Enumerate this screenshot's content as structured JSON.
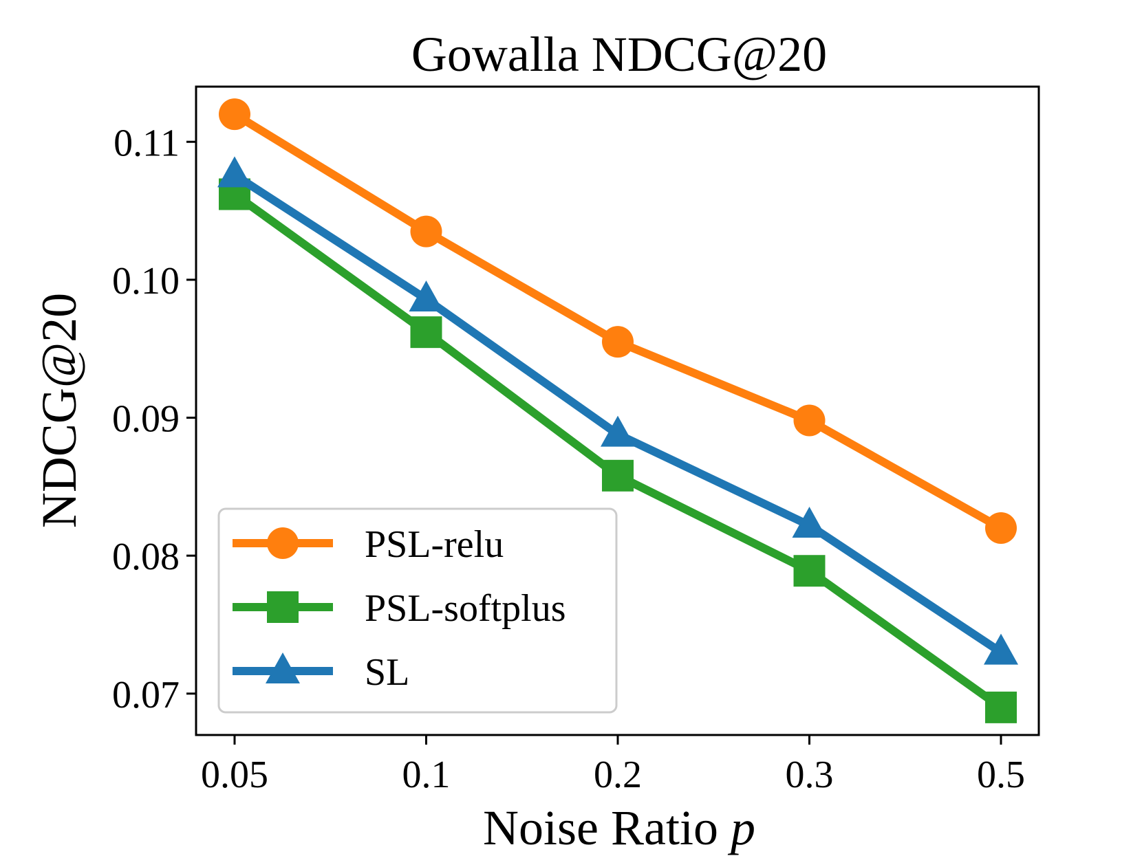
{
  "chart_data": {
    "type": "line",
    "title": "Gowalla  NDCG@20",
    "xlabel": "Noise Ratio",
    "xlabel_var": "p",
    "ylabel": "NDCG@20",
    "categories": [
      "0.05",
      "0.1",
      "0.2",
      "0.3",
      "0.5"
    ],
    "ylim": [
      0.067,
      0.114
    ],
    "yticks": [
      0.07,
      0.08,
      0.09,
      0.1,
      0.11
    ],
    "ytick_labels": [
      "0.07",
      "0.08",
      "0.09",
      "0.10",
      "0.11"
    ],
    "grid": false,
    "legend_position": "bottom-left",
    "series": [
      {
        "name": "PSL-relu",
        "color": "#ff7f0e",
        "marker": "circle",
        "values": [
          0.112,
          0.1035,
          0.0955,
          0.0898,
          0.082
        ]
      },
      {
        "name": "PSL-softplus",
        "color": "#2ca02c",
        "marker": "square",
        "values": [
          0.1062,
          0.0962,
          0.0858,
          0.0789,
          0.069
        ]
      },
      {
        "name": "SL",
        "color": "#1f77b4",
        "marker": "triangle",
        "values": [
          0.1076,
          0.0986,
          0.0888,
          0.0822,
          0.073
        ]
      }
    ]
  }
}
